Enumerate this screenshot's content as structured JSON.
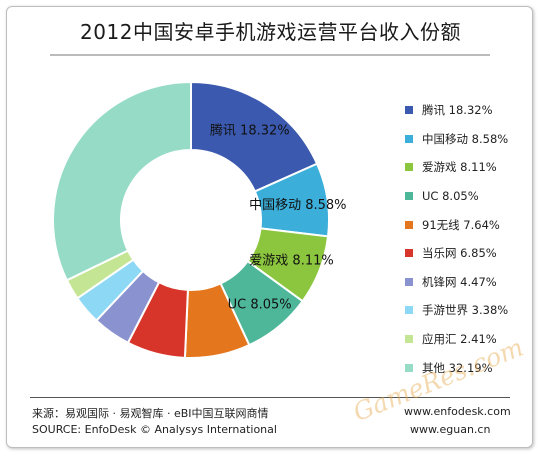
{
  "chart_data": {
    "type": "pie",
    "donut": true,
    "title": "2012中国安卓手机游戏运营平台收入份额",
    "slices": [
      {
        "name": "腾讯",
        "value": 18.32,
        "color": "#3B59AE",
        "label": "腾讯 18.32%"
      },
      {
        "name": "中国移动",
        "value": 8.58,
        "color": "#3BAEDA",
        "label": "中国移动 8.58%"
      },
      {
        "name": "爱游戏",
        "value": 8.11,
        "color": "#8CC63E",
        "label": "爱游戏 8.11%"
      },
      {
        "name": "UC",
        "value": 8.05,
        "color": "#4EB79A",
        "label": "UC 8.05%"
      },
      {
        "name": "91无线",
        "value": 7.64,
        "color": "#E4761D",
        "label": "91无线 7.64%"
      },
      {
        "name": "当乐网",
        "value": 6.85,
        "color": "#D8352A",
        "label": "当乐网 6.85%"
      },
      {
        "name": "机锋网",
        "value": 4.47,
        "color": "#8A93CF",
        "label": "机锋网 4.47%"
      },
      {
        "name": "手游世界",
        "value": 3.38,
        "color": "#8DD8F5",
        "label": "手游世界 3.38%"
      },
      {
        "name": "应用汇",
        "value": 2.41,
        "color": "#C4E594",
        "label": "应用汇 2.41%"
      },
      {
        "name": "其他",
        "value": 32.19,
        "color": "#96DBC6",
        "label": "其他 32.19%"
      }
    ],
    "on_chart_labels": [
      "腾讯 18.32%",
      "中国移动 8.58%",
      "爱游戏 8.11%",
      "UC 8.05%"
    ],
    "legend_position": "right"
  },
  "footer": {
    "source_cn": "来源：易观国际 · 易观智库 · eBI中国互联网商情",
    "source_en": "SOURCE: EnfoDesk © Analysys International",
    "url1": "www.enfodesk.com",
    "url2": "www.eguan.cn"
  },
  "watermark": "GameRes.com"
}
